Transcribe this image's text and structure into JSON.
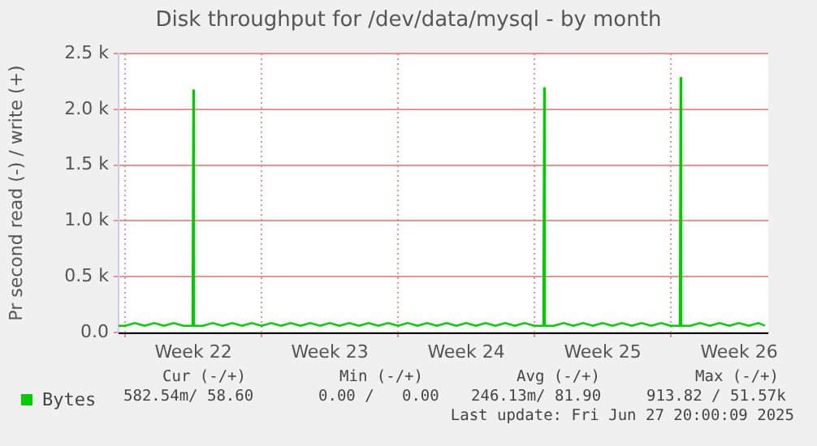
{
  "chart_data": {
    "type": "line",
    "title": "Disk throughput for /dev/data/mysql - by month",
    "ylabel": "Pr second read (-) / write (+)",
    "xlim": [
      "2025-05-25T16:00",
      "2025-06-28T00:00"
    ],
    "xticks": [
      {
        "value": "2025-05-26T00:00",
        "label": null
      },
      {
        "value": "2025-05-29T12:00",
        "label": "Week 22"
      },
      {
        "value": "2025-06-02T00:00",
        "label": null
      },
      {
        "value": "2025-06-05T12:00",
        "label": "Week 23"
      },
      {
        "value": "2025-06-09T00:00",
        "label": null
      },
      {
        "value": "2025-06-12T12:00",
        "label": "Week 24"
      },
      {
        "value": "2025-06-16T00:00",
        "label": null
      },
      {
        "value": "2025-06-19T12:00",
        "label": "Week 25"
      },
      {
        "value": "2025-06-23T00:00",
        "label": null
      },
      {
        "value": "2025-06-26T12:00",
        "label": "Week 26"
      }
    ],
    "ylim": [
      0,
      2500
    ],
    "yticks": [
      {
        "value": 0,
        "label": "0.0"
      },
      {
        "value": 500,
        "label": "0.5 k"
      },
      {
        "value": 1000,
        "label": "1.0 k"
      },
      {
        "value": 1500,
        "label": "1.5 k"
      },
      {
        "value": 2000,
        "label": "2.0 k"
      },
      {
        "value": 2500,
        "label": "2.5 k"
      }
    ],
    "grid": true,
    "legend": "bottom",
    "marker": "none",
    "line_style": "solid",
    "series": [
      {
        "name": "Bytes",
        "color": "#00cc00",
        "x": [
          "2025-05-25T16:00",
          "2025-05-26T00:00",
          "2025-05-26T12:00",
          "2025-05-27T00:00",
          "2025-05-27T12:00",
          "2025-05-28T00:00",
          "2025-05-28T12:00",
          "2025-05-29T00:00",
          "2025-05-29T11:00",
          "2025-05-29T12:00",
          "2025-05-29T13:00",
          "2025-05-30T00:00",
          "2025-05-30T12:00",
          "2025-05-31T00:00",
          "2025-05-31T12:00",
          "2025-06-01T00:00",
          "2025-06-01T12:00",
          "2025-06-02T00:00",
          "2025-06-02T12:00",
          "2025-06-03T00:00",
          "2025-06-03T12:00",
          "2025-06-04T00:00",
          "2025-06-04T12:00",
          "2025-06-05T00:00",
          "2025-06-05T12:00",
          "2025-06-06T00:00",
          "2025-06-06T12:00",
          "2025-06-07T00:00",
          "2025-06-07T12:00",
          "2025-06-08T00:00",
          "2025-06-08T12:00",
          "2025-06-09T00:00",
          "2025-06-09T12:00",
          "2025-06-10T00:00",
          "2025-06-10T12:00",
          "2025-06-11T00:00",
          "2025-06-11T12:00",
          "2025-06-12T00:00",
          "2025-06-12T12:00",
          "2025-06-13T00:00",
          "2025-06-13T12:00",
          "2025-06-14T00:00",
          "2025-06-14T12:00",
          "2025-06-15T00:00",
          "2025-06-15T12:00",
          "2025-06-16T00:00",
          "2025-06-16T11:00",
          "2025-06-16T12:00",
          "2025-06-16T13:00",
          "2025-06-17T00:00",
          "2025-06-17T12:00",
          "2025-06-18T00:00",
          "2025-06-18T12:00",
          "2025-06-19T00:00",
          "2025-06-19T12:00",
          "2025-06-20T00:00",
          "2025-06-20T12:00",
          "2025-06-21T00:00",
          "2025-06-21T12:00",
          "2025-06-22T00:00",
          "2025-06-22T12:00",
          "2025-06-23T00:00",
          "2025-06-23T11:00",
          "2025-06-23T12:00",
          "2025-06-23T13:00",
          "2025-06-24T00:00",
          "2025-06-24T12:00",
          "2025-06-25T00:00",
          "2025-06-25T12:00",
          "2025-06-26T00:00",
          "2025-06-26T12:00",
          "2025-06-27T00:00",
          "2025-06-27T12:00",
          "2025-06-27T20:00"
        ],
        "values": [
          60,
          60,
          85,
          60,
          85,
          60,
          85,
          60,
          60,
          2170,
          60,
          60,
          85,
          60,
          85,
          60,
          85,
          60,
          85,
          60,
          85,
          60,
          85,
          60,
          85,
          60,
          85,
          60,
          85,
          60,
          85,
          60,
          85,
          60,
          85,
          60,
          85,
          60,
          85,
          60,
          85,
          60,
          85,
          60,
          85,
          60,
          60,
          2190,
          60,
          60,
          85,
          60,
          85,
          60,
          85,
          60,
          85,
          60,
          85,
          60,
          85,
          60,
          60,
          2280,
          60,
          60,
          85,
          60,
          85,
          60,
          85,
          60,
          85,
          60
        ]
      }
    ],
    "annotations": [
      "Cur (-/+)",
      "Min (-/+)",
      "Avg (-/+)",
      "Max (-/+)",
      "582.54m/ 58.60",
      "0.00 /   0.00",
      "246.13m/ 81.90",
      "913.82 / 51.57k",
      "Last update: Fri Jun 27 20:00:09 2025"
    ]
  }
}
